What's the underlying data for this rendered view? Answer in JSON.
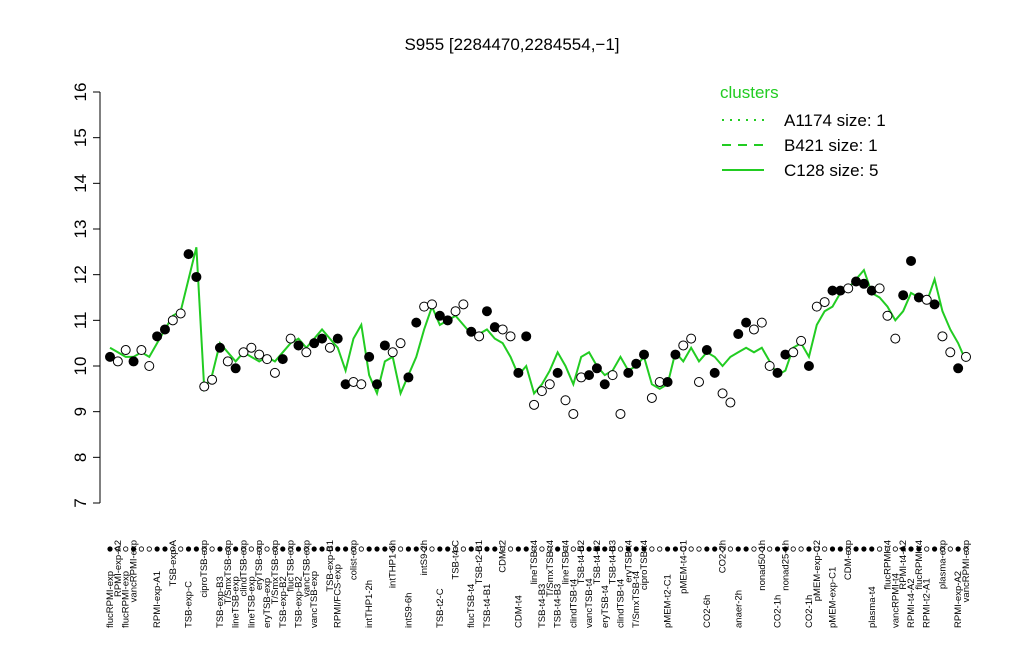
{
  "chart_data": {
    "type": "scatter",
    "title": "S955 [2284470,2284554,−1]",
    "ylim": [
      7,
      16
    ],
    "yticks": [
      7,
      8,
      9,
      10,
      11,
      12,
      13,
      14,
      15,
      16
    ],
    "legend_title": "clusters",
    "legend_position": "top-right",
    "legend_color": "#22cc22",
    "categories": [
      "flucRPMI-exp",
      "RPMI-exp-A2",
      "flucRPMI-exp",
      "vancRPMI-exp",
      null,
      null,
      "RPMI-exp-A1",
      null,
      "TSB-exp-A",
      null,
      "TSB-exp-C",
      null,
      "ciproTSB-exp",
      null,
      "TSB-exp-B3",
      "T/SmxTSB-exp",
      "lineTSB-exp",
      "clindTSB-exp",
      "lineTSB-exp",
      "eryTSB-exp",
      "eryTSB-exp",
      "T/SmxTSB-exp",
      "TSB-exp-B2",
      "flucTSB-exp",
      "TSB-exp-B2",
      "vancTSB-exp",
      "vancTSB-exp",
      null,
      "TSB-exp-B1",
      "RPMI/FCS-exp",
      null,
      "colist-exp",
      null,
      "intTHP1-2h",
      null,
      null,
      "intTHP1-6h",
      null,
      "intS9-6h",
      null,
      "intS9-2h",
      null,
      "TSB-t2-C",
      null,
      "TSB-t4-C",
      null,
      "flucTSB-t4",
      "TSB-t2-B1",
      "TSB-t4-B1",
      null,
      "CDM-t2",
      null,
      "CDM-t4",
      null,
      "lineTSB-t4",
      "TSB-t4-B3",
      "T/SmxTSB-t4",
      "TSB-t4-B3",
      "lineTSB-t4",
      "clindTSB-t4",
      "TSB-t4-B2",
      "vancTSB-t4",
      "TSB-t4-B2",
      "eryTSB-t4",
      "TSB-t4-B3",
      "clindTSB-t4",
      "eryTSB-t4",
      "T/SmxTSB-t4",
      "ciproTSB-t4",
      null,
      null,
      "pMEM-t2-C1",
      null,
      "pMEM-t4-C1",
      null,
      null,
      "CO2-6h",
      null,
      "CO2-2h",
      null,
      "anaer-2h",
      null,
      null,
      "nonad50-1h",
      null,
      "CO2-1h",
      "nonad25-1h",
      null,
      null,
      "CO2-1h",
      "pMEM-exp-C2",
      null,
      "pMEM-exp-C1",
      null,
      "CDM-exp",
      null,
      null,
      "plasma-t4",
      null,
      "flucRPMI-t4",
      "vancRPMI-t4",
      "RPMI-t4-A2",
      "RPMI-t4-A2",
      "flucRPMI-t4",
      "RPMI-t2-A1",
      null,
      "plasma-exp",
      null,
      "RPMI-exp-A2",
      "vancRPMI-exp"
    ],
    "point_filled": [
      true,
      false,
      false,
      true,
      false,
      false,
      true,
      true,
      false,
      false,
      true,
      true,
      false,
      false,
      true,
      false,
      true,
      false,
      false,
      false,
      false,
      false,
      true,
      false,
      true,
      false,
      true,
      true,
      false,
      true,
      true,
      false,
      false,
      true,
      true,
      true,
      false,
      false,
      true,
      true,
      false,
      false,
      true,
      true,
      false,
      false,
      true,
      false,
      true,
      true,
      false,
      false,
      true,
      true,
      false,
      false,
      false,
      true,
      false,
      false,
      false,
      true,
      true,
      true,
      false,
      false,
      true,
      true,
      true,
      false,
      false,
      true,
      true,
      false,
      false,
      false,
      true,
      true,
      false,
      false,
      true,
      true,
      false,
      false,
      false,
      true,
      true,
      false,
      false,
      true,
      false,
      false,
      true,
      true,
      false,
      true,
      true,
      true,
      false,
      false,
      false,
      true,
      true,
      true,
      false,
      true,
      false,
      false,
      true,
      false
    ],
    "series": [
      {
        "name": "A1174 size: 1",
        "color": "#22cc22",
        "dash": "dotted"
      },
      {
        "name": "B421 size: 1",
        "color": "#22cc22",
        "dash": "dashed"
      },
      {
        "name": "C128 size: 5",
        "color": "#22cc22",
        "dash": "solid",
        "values": [
          10.4,
          10.3,
          10.2,
          10.2,
          10.3,
          10.2,
          10.5,
          10.8,
          11.1,
          11.2,
          11.9,
          12.6,
          9.5,
          9.8,
          10.5,
          10.3,
          10.1,
          10.3,
          10.2,
          10.1,
          10.2,
          10.1,
          10.3,
          10.5,
          10.6,
          10.4,
          10.6,
          10.8,
          10.6,
          10.4,
          9.9,
          10.6,
          10.9,
          9.8,
          9.4,
          10.1,
          10.2,
          9.4,
          9.8,
          10.2,
          10.8,
          11.3,
          10.9,
          11.0,
          11.1,
          10.9,
          10.7,
          10.7,
          10.8,
          10.6,
          10.5,
          10.2,
          9.8,
          10.0,
          9.4,
          9.6,
          9.9,
          10.3,
          10.0,
          9.6,
          10.2,
          10.3,
          10.0,
          9.8,
          9.9,
          10.2,
          9.9,
          10.0,
          10.2,
          9.6,
          9.5,
          9.6,
          10.3,
          10.1,
          10.4,
          10.1,
          10.3,
          10.2,
          10.0,
          10.2,
          10.3,
          10.4,
          10.3,
          10.4,
          10.1,
          9.8,
          9.9,
          10.4,
          10.5,
          10.2,
          10.9,
          11.2,
          11.3,
          11.6,
          11.7,
          11.9,
          12.1,
          11.6,
          11.5,
          11.3,
          11.0,
          11.2,
          11.6,
          11.5,
          11.4,
          11.9,
          11.2,
          10.8,
          10.5,
          10.1
        ]
      },
      {
        "name": "points",
        "values": [
          10.2,
          10.1,
          10.35,
          10.1,
          10.35,
          10.0,
          10.65,
          10.8,
          11.0,
          11.15,
          12.45,
          11.95,
          9.55,
          9.7,
          10.4,
          10.1,
          9.95,
          10.3,
          10.4,
          10.25,
          10.15,
          9.85,
          10.15,
          10.6,
          10.45,
          10.3,
          10.5,
          10.6,
          10.4,
          10.6,
          9.6,
          9.65,
          9.6,
          10.2,
          9.6,
          10.45,
          10.3,
          10.5,
          9.75,
          10.95,
          11.3,
          11.35,
          11.1,
          11.0,
          11.2,
          11.35,
          10.75,
          10.65,
          11.2,
          10.85,
          10.8,
          10.65,
          9.85,
          10.65,
          9.15,
          9.45,
          9.6,
          9.85,
          9.25,
          8.95,
          9.75,
          9.8,
          9.95,
          9.6,
          9.8,
          8.95,
          9.85,
          10.05,
          10.25,
          9.3,
          9.65,
          9.65,
          10.25,
          10.45,
          10.6,
          9.65,
          10.35,
          9.85,
          9.4,
          9.2,
          10.7,
          10.95,
          10.8,
          10.95,
          10.0,
          9.85,
          10.25,
          10.3,
          10.55,
          10.0,
          11.3,
          11.4,
          11.65,
          11.65,
          11.7,
          11.85,
          11.8,
          11.65,
          11.7,
          11.1,
          10.6,
          11.55,
          12.3,
          11.5,
          11.45,
          11.35,
          10.65,
          10.3,
          9.95,
          10.2
        ]
      }
    ]
  }
}
